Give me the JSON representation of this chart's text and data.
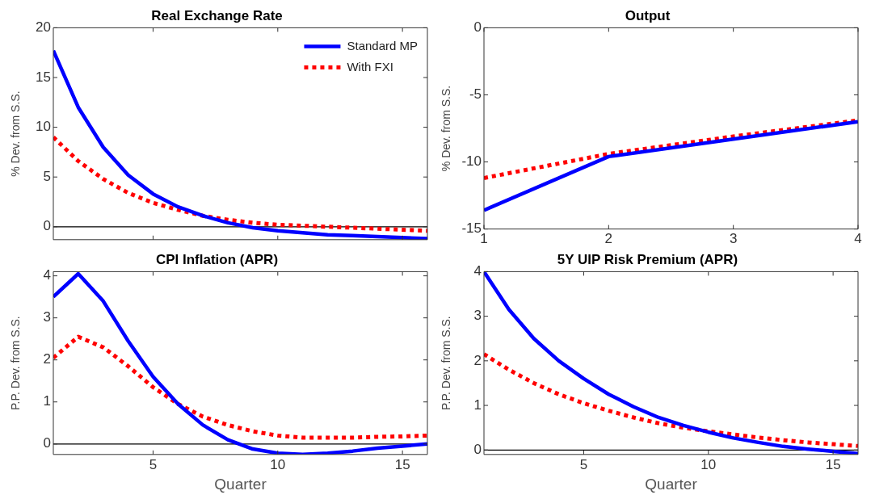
{
  "chart_data": [
    {
      "type": "line",
      "title": "Real Exchange Rate",
      "ylabel": "% Dev. from S.S.",
      "x": [
        1,
        2,
        3,
        4,
        5,
        6,
        7,
        8,
        9,
        10,
        11,
        12,
        13,
        14,
        15,
        16
      ],
      "xlim": [
        1,
        16
      ],
      "xticks": [
        5,
        10,
        15
      ],
      "ylim": [
        -1.3,
        20
      ],
      "yticks": [
        0,
        5,
        10,
        15,
        20
      ],
      "tick_labels": "y",
      "legend": "top right",
      "grid": false,
      "ref_lines": [
        {
          "axis": "y",
          "value": 0,
          "color": "#000000"
        }
      ],
      "series": [
        {
          "name": "Standard MP",
          "color": "#0000ff",
          "line_style": "solid",
          "values": [
            17.7,
            12,
            8,
            5.2,
            3.3,
            2.0,
            1.1,
            0.4,
            -0.1,
            -0.4,
            -0.6,
            -0.8,
            -0.9,
            -1.0,
            -1.1,
            -1.2
          ]
        },
        {
          "name": "With FXI",
          "color": "#ff0000",
          "line_style": "dotted",
          "values": [
            9,
            6.6,
            4.8,
            3.4,
            2.4,
            1.7,
            1.1,
            0.7,
            0.4,
            0.2,
            0.1,
            0,
            -0.1,
            -0.2,
            -0.3,
            -0.4
          ]
        }
      ]
    },
    {
      "type": "line",
      "title": "Output",
      "ylabel": "% Dev. from S.S.",
      "x": [
        1,
        2,
        3,
        4
      ],
      "xlim": [
        1,
        4
      ],
      "xticks": [
        1,
        2,
        3,
        4
      ],
      "ylim": [
        -15,
        0
      ],
      "yticks": [
        -15,
        -10,
        -5,
        0
      ],
      "grid": false,
      "series": [
        {
          "color": "#0000ff",
          "line_style": "solid",
          "values": [
            -13.6,
            -9.6,
            -8.3,
            -7.0
          ]
        },
        {
          "color": "#ff0000",
          "line_style": "dotted",
          "values": [
            -11.2,
            -9.4,
            -8.1,
            -6.9
          ]
        }
      ]
    },
    {
      "type": "line",
      "title": "CPI Inflation (APR)",
      "xlabel": "Quarter",
      "ylabel": "P.P. Dev. from S.S.",
      "x": [
        1,
        2,
        3,
        4,
        5,
        6,
        7,
        8,
        9,
        10,
        11,
        12,
        13,
        14,
        15,
        16
      ],
      "xlim": [
        1,
        16
      ],
      "xticks": [
        5,
        10,
        15
      ],
      "ylim": [
        -0.25,
        4.1
      ],
      "yticks": [
        0,
        1,
        2,
        3,
        4
      ],
      "grid": false,
      "ref_lines": [
        {
          "axis": "y",
          "value": 0,
          "color": "#000000"
        }
      ],
      "series": [
        {
          "color": "#0000ff",
          "line_style": "solid",
          "values": [
            3.5,
            4.05,
            3.4,
            2.45,
            1.6,
            0.95,
            0.45,
            0.1,
            -0.12,
            -0.22,
            -0.25,
            -0.22,
            -0.17,
            -0.1,
            -0.05,
            0.0
          ]
        },
        {
          "color": "#ff0000",
          "line_style": "dotted",
          "values": [
            2.05,
            2.55,
            2.3,
            1.85,
            1.35,
            0.95,
            0.65,
            0.45,
            0.3,
            0.2,
            0.15,
            0.15,
            0.15,
            0.17,
            0.18,
            0.2
          ]
        }
      ]
    },
    {
      "type": "line",
      "title": "5Y UIP Risk Premium (APR)",
      "xlabel": "Quarter",
      "ylabel": "P.P. Dev. from S.S.",
      "x": [
        1,
        2,
        3,
        4,
        5,
        6,
        7,
        8,
        9,
        10,
        11,
        12,
        13,
        14,
        15,
        16
      ],
      "xlim": [
        1,
        16
      ],
      "xticks": [
        5,
        10,
        15
      ],
      "ylim": [
        -0.1,
        4
      ],
      "yticks": [
        0,
        1,
        2,
        3,
        4
      ],
      "grid": false,
      "ref_lines": [
        {
          "axis": "y",
          "value": 0,
          "color": "#000000"
        }
      ],
      "series": [
        {
          "color": "#0000ff",
          "line_style": "solid",
          "values": [
            4.0,
            3.15,
            2.5,
            2.0,
            1.6,
            1.25,
            0.97,
            0.73,
            0.55,
            0.4,
            0.27,
            0.17,
            0.08,
            0.02,
            -0.03,
            -0.08
          ]
        },
        {
          "color": "#ff0000",
          "line_style": "dotted",
          "values": [
            2.15,
            1.8,
            1.5,
            1.25,
            1.05,
            0.88,
            0.73,
            0.6,
            0.5,
            0.42,
            0.35,
            0.28,
            0.22,
            0.17,
            0.13,
            0.09
          ]
        }
      ]
    }
  ]
}
